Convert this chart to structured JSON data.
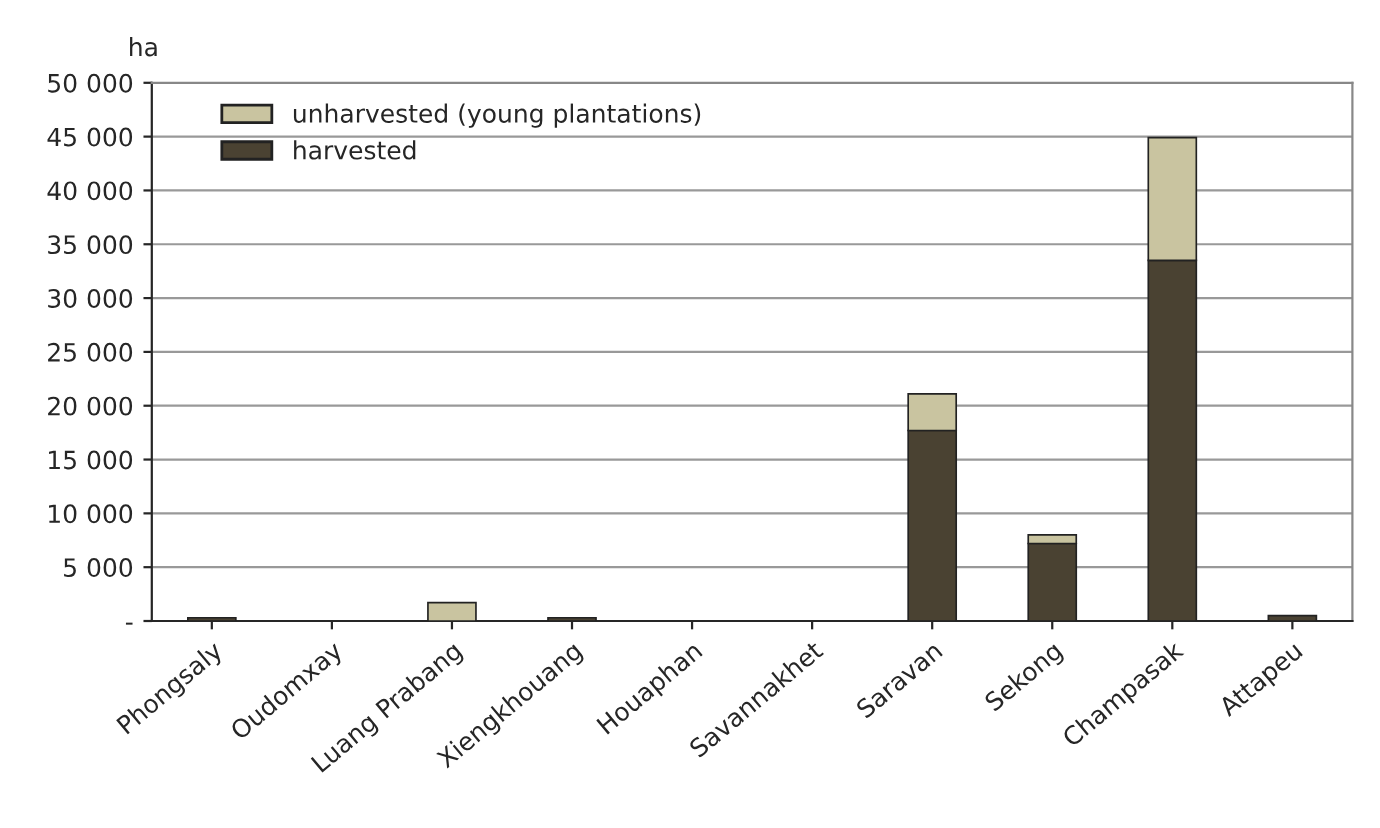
{
  "chart_data": {
    "type": "bar",
    "stacked": true,
    "ylabel": "ha",
    "categories": [
      "Phongsaly",
      "Oudomxay",
      "Luang Prabang",
      "Xiengkhouang",
      "Houaphan",
      "Savannakhet",
      "Saravan",
      "Sekong",
      "Champasak",
      "Attapeu"
    ],
    "series": [
      {
        "name": "harvested",
        "color": "#4a4232",
        "values": [
          300,
          0,
          0,
          300,
          0,
          0,
          17700,
          7200,
          33500,
          500
        ]
      },
      {
        "name": "unharvested (young plantations)",
        "color": "#c9c4a0",
        "values": [
          0,
          0,
          1700,
          0,
          0,
          0,
          3400,
          800,
          11400,
          0
        ]
      }
    ],
    "ylim": [
      0,
      50000
    ],
    "yticks": [
      {
        "value": 0,
        "label": "-"
      },
      {
        "value": 5000,
        "label": "5 000"
      },
      {
        "value": 10000,
        "label": "10 000"
      },
      {
        "value": 15000,
        "label": "15 000"
      },
      {
        "value": 20000,
        "label": "20 000"
      },
      {
        "value": 25000,
        "label": "25 000"
      },
      {
        "value": 30000,
        "label": "30 000"
      },
      {
        "value": 35000,
        "label": "35 000"
      },
      {
        "value": 40000,
        "label": "40 000"
      },
      {
        "value": 45000,
        "label": "45 000"
      },
      {
        "value": 50000,
        "label": "50 000"
      }
    ],
    "grid": "y",
    "legend": "top left"
  }
}
